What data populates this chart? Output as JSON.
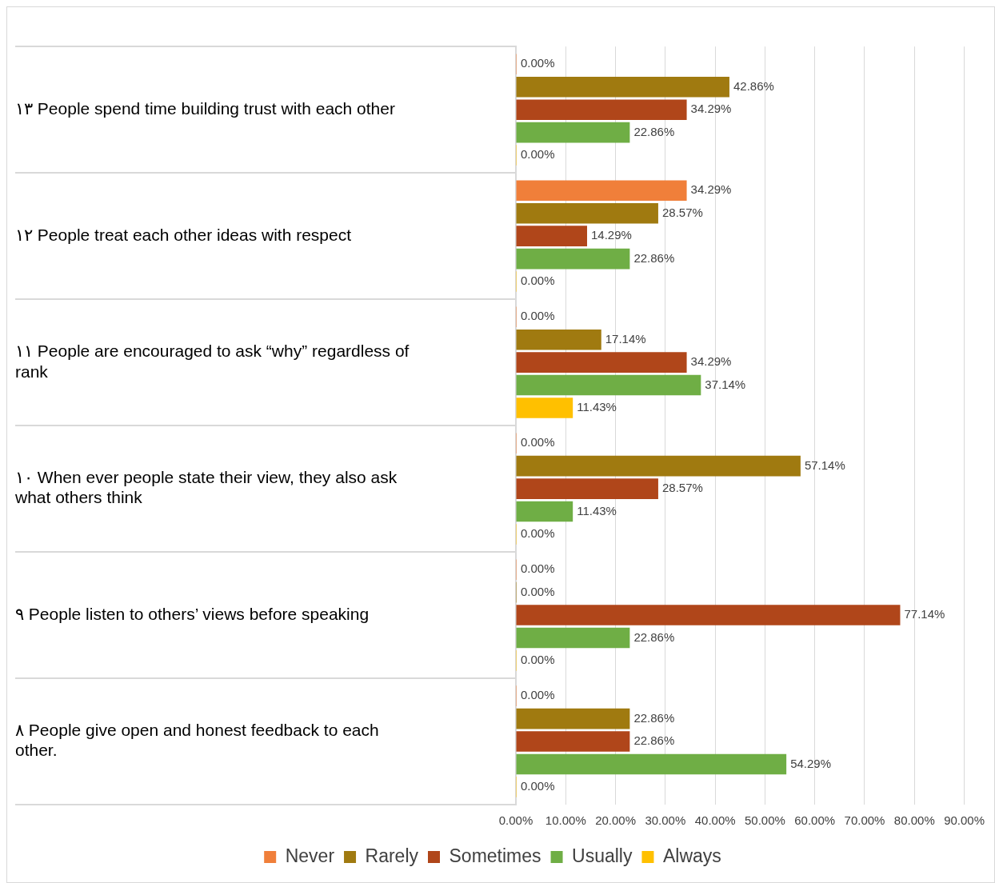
{
  "chart_data": {
    "type": "bar",
    "orientation": "horizontal",
    "categories": [
      "١٣ People spend time building trust with each other",
      "١٢ People treat each other ideas with respect",
      "١١ People are encouraged to ask “why” regardless of rank",
      "١٠ When ever people state their view, they also ask what others think",
      "٩ People listen to others’ views before speaking",
      "٨ People give open and honest feedback to each other."
    ],
    "series": [
      {
        "name": "Never",
        "color": "#f07f3a",
        "values": [
          0,
          34.29,
          0,
          0,
          0,
          0
        ],
        "value_labels": [
          "0.00%",
          "34.29%",
          "0.00%",
          "0.00%",
          "0.00%",
          "0.00%"
        ]
      },
      {
        "name": "Rarely",
        "color": "#a07a10",
        "values": [
          42.86,
          28.57,
          17.14,
          57.14,
          0,
          22.86
        ],
        "value_labels": [
          "42.86%",
          "28.57%",
          "17.14%",
          "57.14%",
          "0.00%",
          "22.86%"
        ]
      },
      {
        "name": "Sometimes",
        "color": "#b0461a",
        "values": [
          34.29,
          14.29,
          34.29,
          28.57,
          77.14,
          22.86
        ],
        "value_labels": [
          "34.29%",
          "14.29%",
          "34.29%",
          "28.57%",
          "77.14%",
          "22.86%"
        ]
      },
      {
        "name": "Usually",
        "color": "#6fae45",
        "values": [
          22.86,
          22.86,
          37.14,
          11.43,
          22.86,
          54.29
        ],
        "value_labels": [
          "22.86%",
          "22.86%",
          "37.14%",
          "11.43%",
          "22.86%",
          "54.29%"
        ]
      },
      {
        "name": "Always",
        "color": "#ffc000",
        "values": [
          0,
          0,
          11.43,
          0,
          0,
          0
        ],
        "value_labels": [
          "0.00%",
          "0.00%",
          "11.43%",
          "0.00%",
          "0.00%",
          "0.00%"
        ]
      }
    ],
    "xlim": [
      0,
      90
    ],
    "xticks": [
      {
        "value": 0,
        "label": "0.00%"
      },
      {
        "value": 10,
        "label": "10.00%"
      },
      {
        "value": 20,
        "label": "20.00%"
      },
      {
        "value": 30,
        "label": "30.00%"
      },
      {
        "value": 40,
        "label": "40.00%"
      },
      {
        "value": 50,
        "label": "50.00%"
      },
      {
        "value": 60,
        "label": "60.00%"
      },
      {
        "value": 70,
        "label": "70.00%"
      },
      {
        "value": 80,
        "label": "80.00%"
      },
      {
        "value": 90,
        "label": "90.00%"
      }
    ],
    "grid": "x",
    "legend": "bottom"
  }
}
